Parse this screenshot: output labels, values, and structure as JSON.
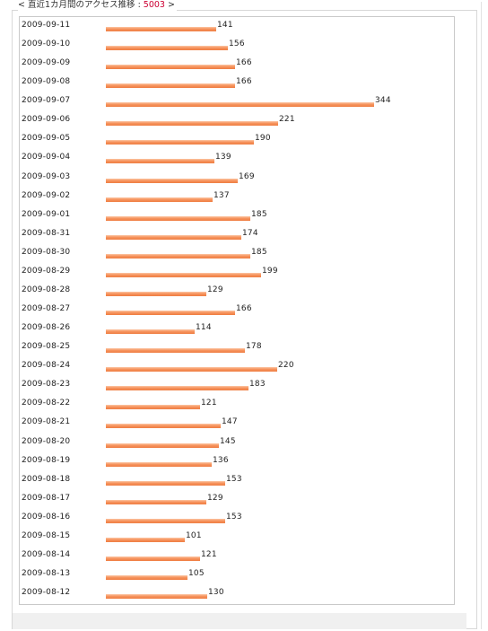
{
  "header": {
    "prefix": "< 直近1カ月間のアクセス推移 : ",
    "total": "5003",
    "suffix": " >"
  },
  "colors": {
    "bar": "#f6945e",
    "total_accent": "#cc0033"
  },
  "chart_data": {
    "type": "bar",
    "orientation": "horizontal",
    "title": "直近1カ月間のアクセス推移",
    "total": 5003,
    "xlim": [
      0,
      344
    ],
    "categories": [
      "2009-09-11",
      "2009-09-10",
      "2009-09-09",
      "2009-09-08",
      "2009-09-07",
      "2009-09-06",
      "2009-09-05",
      "2009-09-04",
      "2009-09-03",
      "2009-09-02",
      "2009-09-01",
      "2009-08-31",
      "2009-08-30",
      "2009-08-29",
      "2009-08-28",
      "2009-08-27",
      "2009-08-26",
      "2009-08-25",
      "2009-08-24",
      "2009-08-23",
      "2009-08-22",
      "2009-08-21",
      "2009-08-20",
      "2009-08-19",
      "2009-08-18",
      "2009-08-17",
      "2009-08-16",
      "2009-08-15",
      "2009-08-14",
      "2009-08-13",
      "2009-08-12"
    ],
    "values": [
      141,
      156,
      166,
      166,
      344,
      221,
      190,
      139,
      169,
      137,
      185,
      174,
      185,
      199,
      129,
      166,
      114,
      178,
      220,
      183,
      121,
      147,
      145,
      136,
      153,
      129,
      153,
      101,
      121,
      105,
      130
    ]
  }
}
